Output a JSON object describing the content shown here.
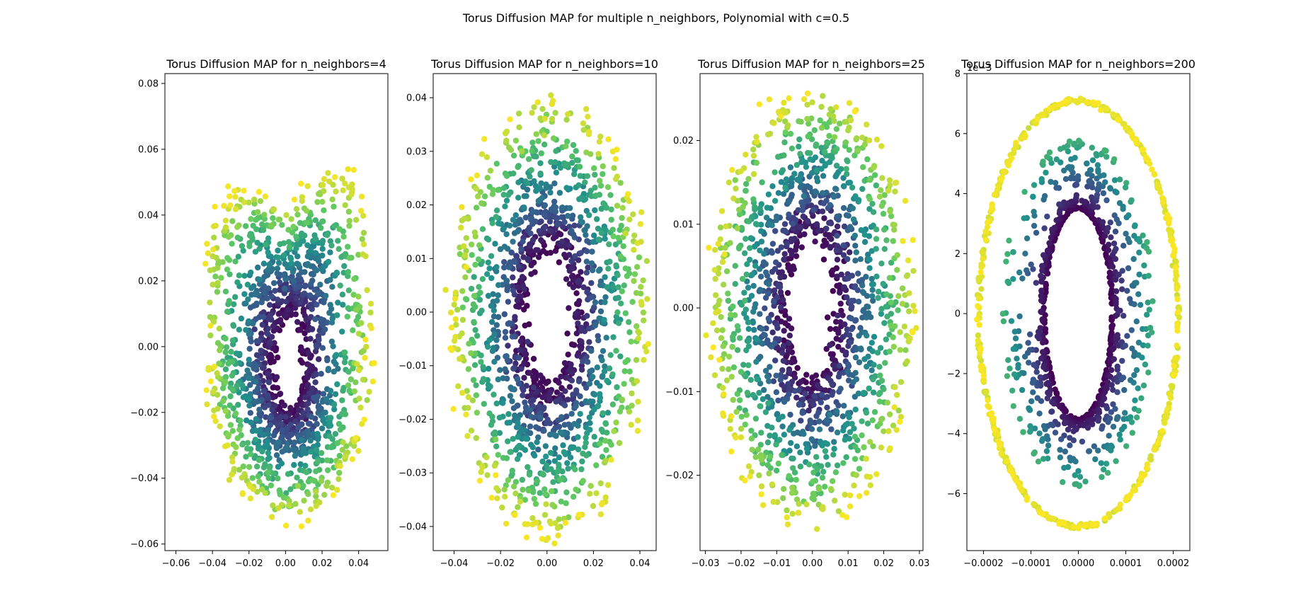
{
  "figure": {
    "suptitle": "Torus Diffusion MAP for multiple n_neighbors, Polynomial with c=0.5"
  },
  "colormap": [
    "#440154",
    "#3b528b",
    "#21918c",
    "#5ec962",
    "#fde725"
  ],
  "chart_data": [
    {
      "type": "scatter",
      "title": "Torus Diffusion MAP for n_neighbors=4",
      "xlim": [
        -0.066,
        0.056
      ],
      "ylim": [
        -0.062,
        0.083
      ],
      "xticks": [
        -0.06,
        -0.04,
        -0.02,
        0.0,
        0.02,
        0.04
      ],
      "xtick_labels": [
        "−0.06",
        "−0.04",
        "−0.02",
        "0.00",
        "0.02",
        "0.04"
      ],
      "yticks": [
        -0.06,
        -0.04,
        -0.02,
        0.0,
        0.02,
        0.04,
        0.06,
        0.08
      ],
      "ytick_labels": [
        "−0.06",
        "−0.04",
        "−0.02",
        "0.00",
        "0.02",
        "0.04",
        "0.06",
        "0.08"
      ],
      "offset_text": "",
      "shape": "irregular-ring",
      "ring": {
        "center": [
          0.002,
          -0.005
        ],
        "inner_radius": [
          0.009,
          0.015
        ],
        "outer_radius": [
          0.045,
          0.048
        ]
      },
      "color_encoding": "viridis: inner points purple, outer points yellow",
      "n_points": 1400,
      "grid": false
    },
    {
      "type": "scatter",
      "title": "Torus Diffusion MAP for n_neighbors=10",
      "xlim": [
        -0.049,
        0.047
      ],
      "ylim": [
        -0.0445,
        0.0445
      ],
      "xticks": [
        -0.04,
        -0.02,
        0.0,
        0.02,
        0.04
      ],
      "xtick_labels": [
        "−0.04",
        "−0.02",
        "0.00",
        "0.02",
        "0.04"
      ],
      "yticks": [
        -0.04,
        -0.03,
        -0.02,
        -0.01,
        0.0,
        0.01,
        0.02,
        0.03,
        0.04
      ],
      "ytick_labels": [
        "−0.04",
        "−0.03",
        "−0.02",
        "−0.01",
        "0.00",
        "0.01",
        "0.02",
        "0.03",
        "0.04"
      ],
      "offset_text": "",
      "shape": "ring",
      "ring": {
        "center": [
          0.001,
          -0.001
        ],
        "inner_radius": [
          0.011,
          0.013
        ],
        "outer_radius": [
          0.043,
          0.041
        ]
      },
      "color_encoding": "viridis: inner points purple, outer points yellow",
      "n_points": 1400,
      "grid": false
    },
    {
      "type": "scatter",
      "title": "Torus Diffusion MAP for n_neighbors=25",
      "xlim": [
        -0.0315,
        0.031
      ],
      "ylim": [
        -0.029,
        0.028
      ],
      "xticks": [
        -0.03,
        -0.02,
        -0.01,
        0.0,
        0.01,
        0.02,
        0.03
      ],
      "xtick_labels": [
        "−0.03",
        "−0.02",
        "−0.01",
        "0.00",
        "0.01",
        "0.02",
        "0.03"
      ],
      "yticks": [
        -0.02,
        -0.01,
        0.0,
        0.01,
        0.02
      ],
      "ytick_labels": [
        "−0.02",
        "−0.01",
        "0.00",
        "0.01",
        "0.02"
      ],
      "offset_text": "",
      "shape": "ring",
      "ring": {
        "center": [
          0.0,
          0.0
        ],
        "inner_radius": [
          0.007,
          0.009
        ],
        "outer_radius": [
          0.029,
          0.026
        ]
      },
      "color_encoding": "viridis: inner points purple, outer points yellow",
      "n_points": 1400,
      "grid": false
    },
    {
      "type": "scatter",
      "title": "Torus Diffusion MAP for n_neighbors=200",
      "xlim": [
        -0.000235,
        0.000235
      ],
      "ylim": [
        -0.0079,
        0.008
      ],
      "xticks": [
        -0.0002,
        -0.0001,
        0.0,
        0.0001,
        0.0002
      ],
      "xtick_labels": [
        "−0.0002",
        "−0.0001",
        "0.0000",
        "0.0001",
        "0.0002"
      ],
      "yticks": [
        -0.006,
        -0.004,
        -0.002,
        0.0,
        0.002,
        0.004,
        0.006,
        0.008
      ],
      "ytick_labels": [
        "−6",
        "−4",
        "−2",
        "0",
        "2",
        "4",
        "6",
        "8"
      ],
      "offset_text": "1e−3",
      "shape": "two-ellipses",
      "ring": {
        "center": [
          0.0,
          0.0
        ],
        "inner_radius": [
          7e-05,
          0.0035
        ],
        "outer_radius": [
          0.00021,
          0.0071
        ]
      },
      "color_encoding": "viridis: inner ellipse purple, outer ellipse yellow/green",
      "n_points": 1400,
      "grid": false
    }
  ]
}
